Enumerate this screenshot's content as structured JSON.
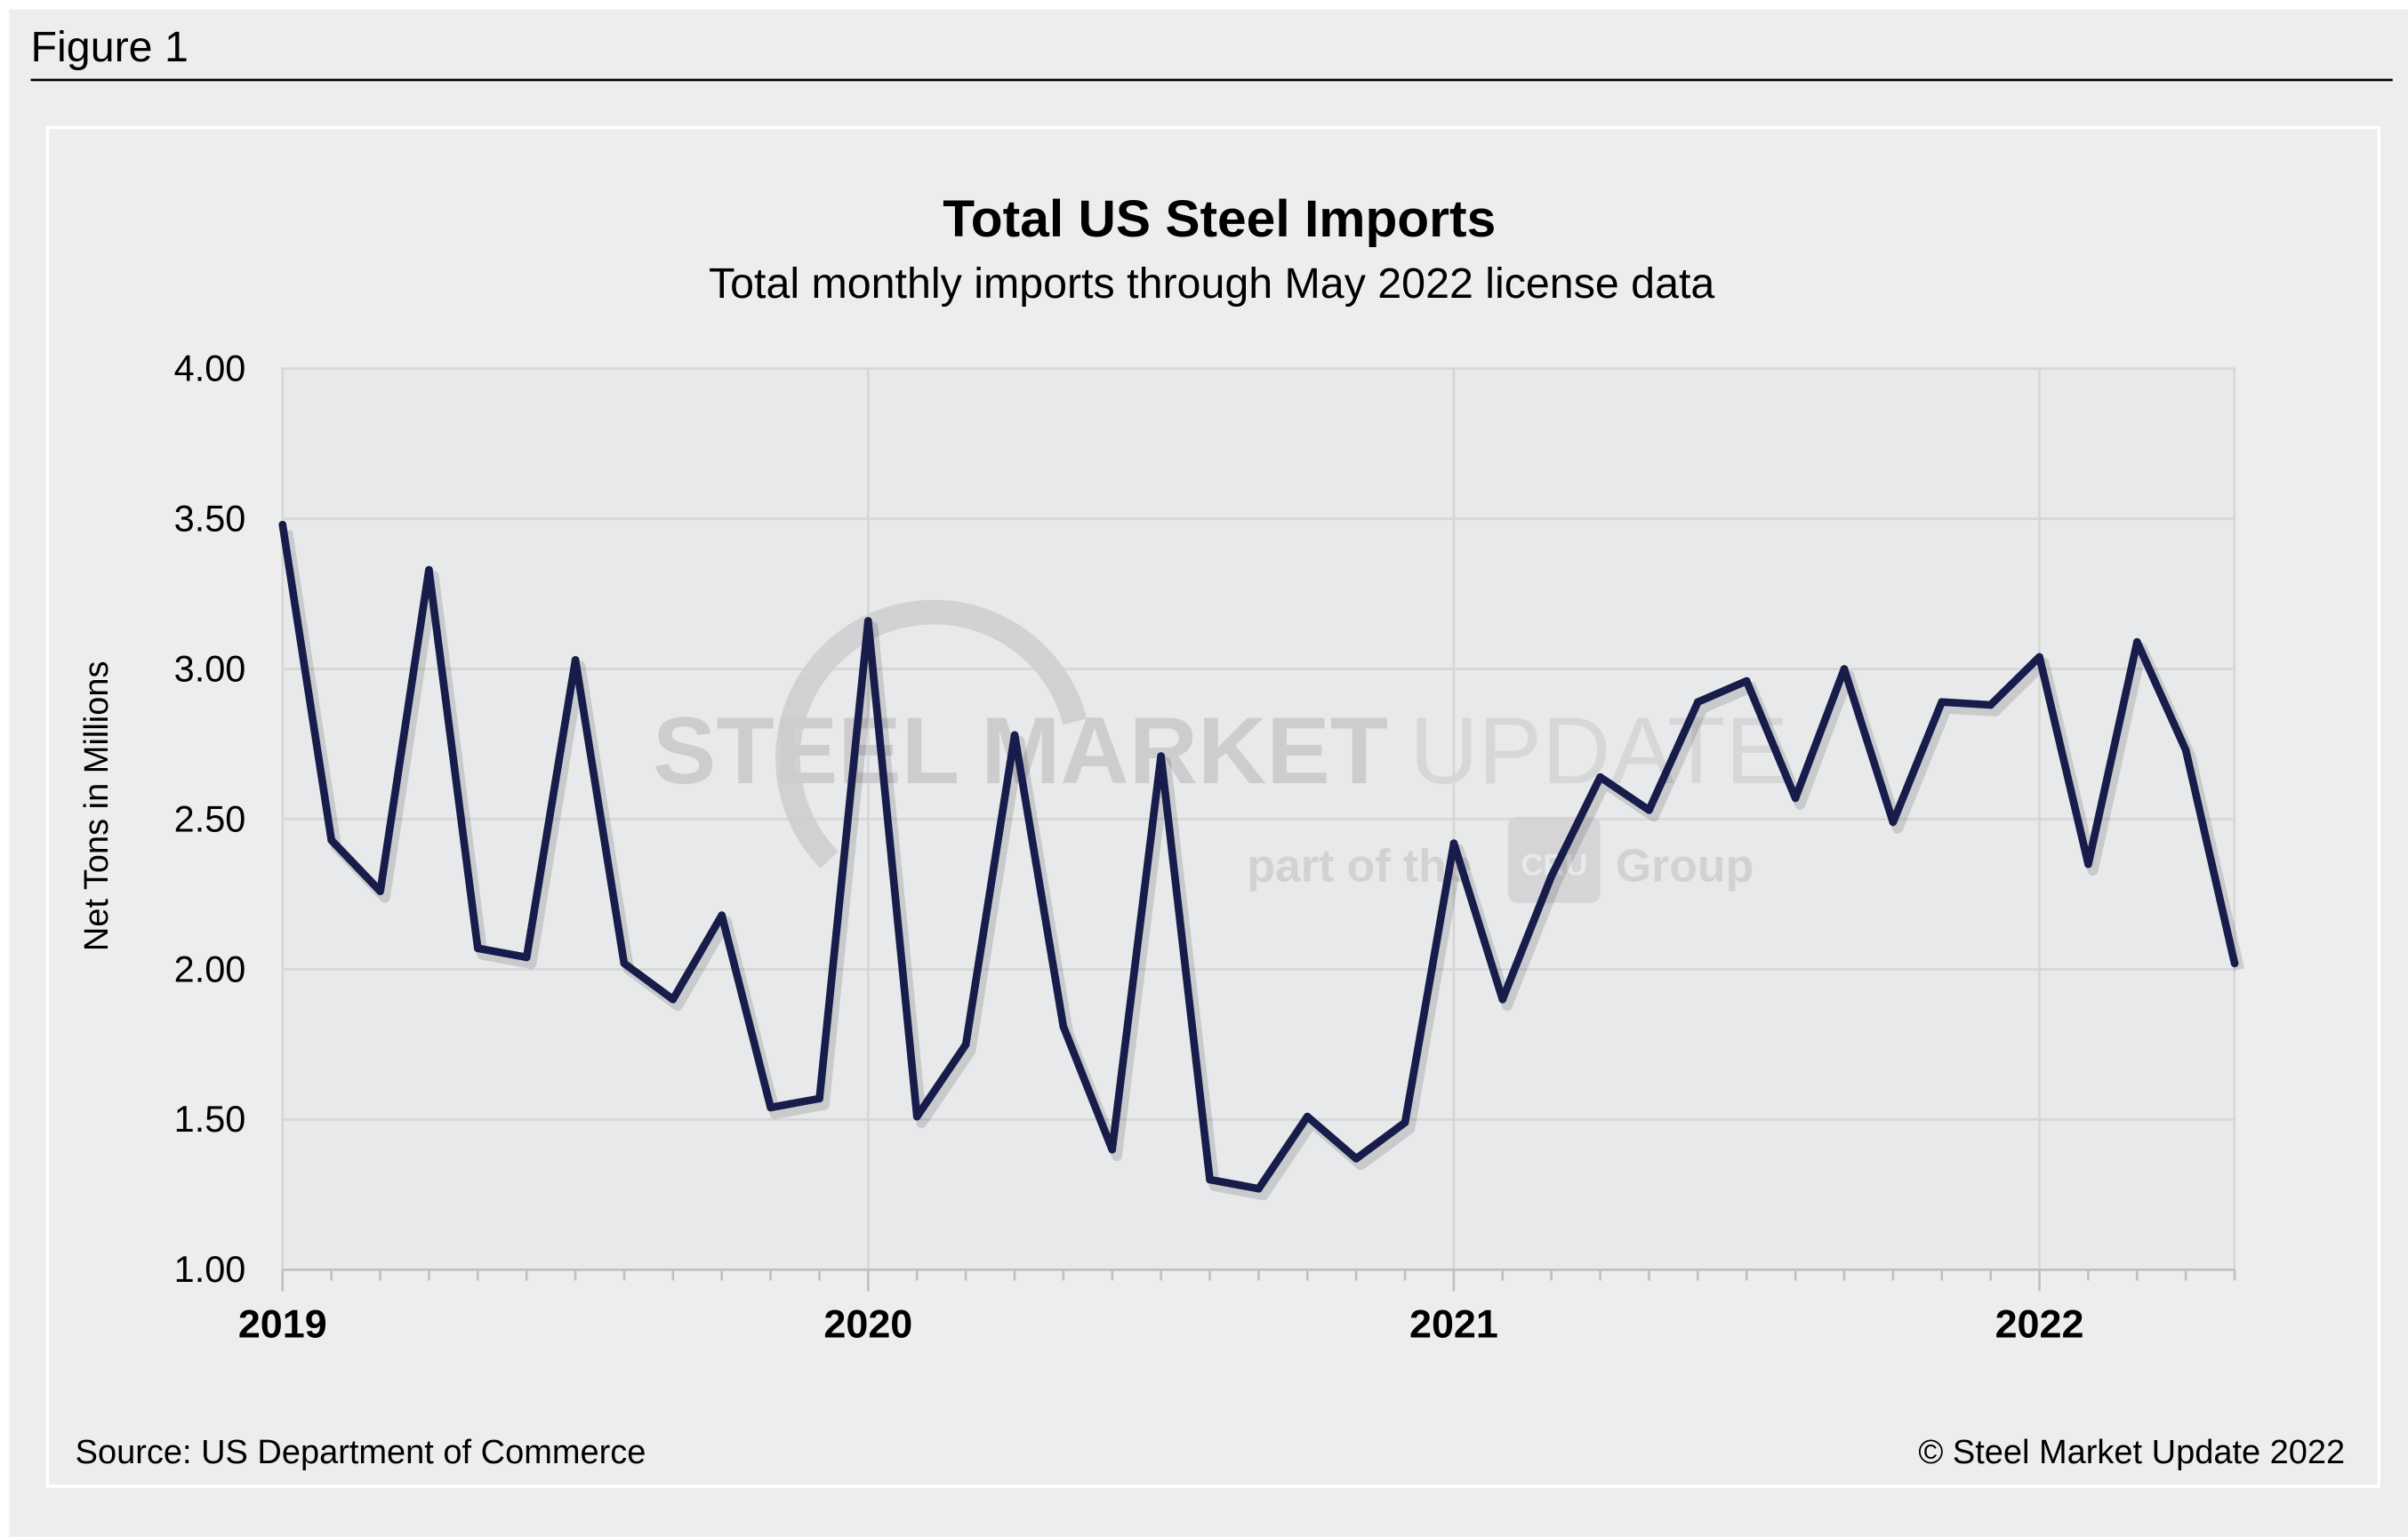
{
  "figure_label": "Figure 1",
  "source": "Source: US Department of Commerce",
  "copyright": "© Steel Market Update 2022",
  "watermark": {
    "line1_bold": "STEEL",
    "line1_mid": "MARKET",
    "line1_light": "UPDATE",
    "line2a": "part of the",
    "line2_logo": "CRU",
    "line2b": "Group"
  },
  "colors": {
    "line": "#171c4b",
    "plot_bg": "#e8e9eb",
    "page_bg": "#ededed",
    "grid": "#d6d6d6"
  },
  "chart_data": {
    "type": "line",
    "title": "Total US Steel Imports",
    "subtitle": "Total monthly imports through May 2022 license data",
    "ylabel": "Net Tons in Millions",
    "xlabel": "",
    "ylim": [
      1.0,
      4.0
    ],
    "yticks": [
      "1.00",
      "1.50",
      "2.00",
      "2.50",
      "3.00",
      "3.50",
      "4.00"
    ],
    "xtick_labels": [
      "2019",
      "2020",
      "2021",
      "2022"
    ],
    "grid": true,
    "x_start": "2019-01",
    "x_end": "2022-05",
    "series": [
      {
        "values": [
          3.48,
          2.43,
          2.26,
          3.33,
          2.07,
          2.04,
          3.03,
          2.02,
          1.9,
          2.18,
          1.54,
          1.57,
          3.16,
          1.51,
          1.75,
          2.78,
          1.81,
          1.4,
          2.71,
          1.3,
          1.27,
          1.51,
          1.37,
          1.49,
          2.42,
          1.9,
          2.31,
          2.64,
          2.53,
          2.89,
          2.96,
          2.57,
          3.0,
          2.49,
          2.89,
          2.88,
          3.04,
          2.35,
          3.09,
          2.73,
          2.02
        ]
      }
    ]
  }
}
